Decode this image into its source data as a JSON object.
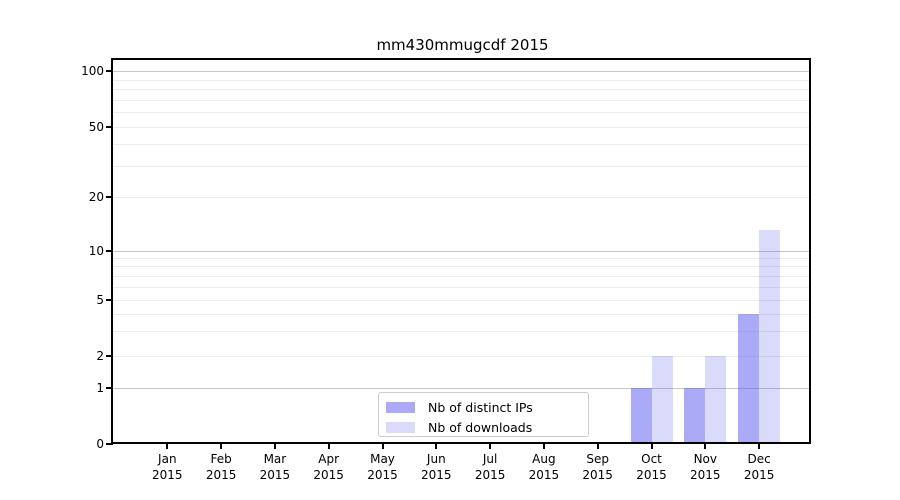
{
  "figure": {
    "title": "mm430mmugcdf 2015"
  },
  "chart_data": {
    "type": "bar",
    "title": "mm430mmugcdf 2015",
    "x_months": [
      "Jan",
      "Feb",
      "Mar",
      "Apr",
      "May",
      "Jun",
      "Jul",
      "Aug",
      "Sep",
      "Oct",
      "Nov",
      "Dec"
    ],
    "x_year": "2015",
    "series": [
      {
        "name": "Nb of distinct IPs",
        "color": "rgba(85,85,238,0.5)",
        "values": [
          0,
          0,
          0,
          0,
          0,
          0,
          0,
          0,
          0,
          1,
          1,
          4
        ]
      },
      {
        "name": "Nb of downloads",
        "color": "rgba(85,85,238,0.22)",
        "values": [
          0,
          0,
          0,
          0,
          0,
          0,
          0,
          0,
          0,
          2,
          2,
          13
        ]
      }
    ],
    "yscale": "symlog-like (compressed log, linear below 1)",
    "ylim": [
      0,
      115
    ],
    "y_ticks": [
      0,
      1,
      2,
      5,
      10,
      20,
      50,
      100
    ],
    "y_minor_gridlines": [
      3,
      4,
      6,
      7,
      8,
      9,
      30,
      40,
      60,
      70,
      80,
      90
    ],
    "y_emphasized_gridlines": [
      1,
      10,
      100
    ],
    "grid": true,
    "legend_position": "inside plot, lower middle"
  },
  "colors": {
    "bar_base": "#5555ee",
    "grid_minor": "#ececec",
    "grid_major": "#c6c6c6",
    "spine": "#000000",
    "text": "#000000",
    "legend_border": "#cccccc",
    "background": "#ffffff"
  }
}
